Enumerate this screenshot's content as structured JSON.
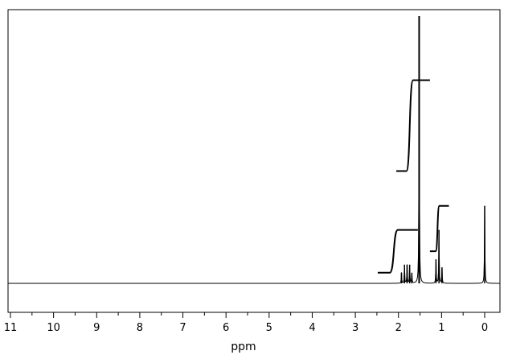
{
  "chart_data": {
    "type": "line",
    "xlabel": "ppm",
    "xlim": [
      11.0,
      -0.35
    ],
    "ylim": [
      -0.09,
      1.0
    ],
    "x_reversed": true,
    "major_ticks": [
      11,
      10,
      9,
      8,
      7,
      6,
      5,
      4,
      3,
      2,
      1,
      0
    ],
    "tick_labels": [
      "11",
      "10",
      "9",
      "8",
      "7",
      "6",
      "5",
      "4",
      "3",
      "2",
      "1",
      "0"
    ],
    "minor_ticks": [
      10.5,
      9.5,
      8.5,
      7.5,
      6.5,
      5.5,
      4.5,
      3.5,
      2.5,
      1.5,
      0.5
    ],
    "grid": false,
    "baseline": 0,
    "peaks": [
      {
        "ppm": 1.93,
        "height": 0.04
      },
      {
        "ppm": 1.86,
        "height": 0.07
      },
      {
        "ppm": 1.8,
        "height": 0.07
      },
      {
        "ppm": 1.74,
        "height": 0.07
      },
      {
        "ppm": 1.69,
        "height": 0.04
      },
      {
        "ppm": 1.52,
        "height": 1.0
      },
      {
        "ppm": 1.13,
        "height": 0.09
      },
      {
        "ppm": 1.06,
        "height": 0.2
      },
      {
        "ppm": 0.99,
        "height": 0.06
      },
      {
        "ppm": 0.0,
        "height": 0.29
      }
    ],
    "integrals": [
      {
        "from": 2.48,
        "to": 1.55,
        "rise": 0.16
      },
      {
        "from": 2.05,
        "to": 1.27,
        "rise": 0.34
      },
      {
        "from": 1.27,
        "to": 0.83,
        "rise": 0.17
      }
    ]
  }
}
